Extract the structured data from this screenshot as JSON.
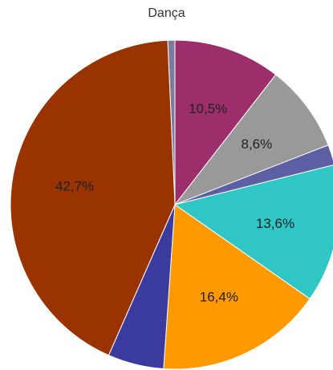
{
  "chart_data": {
    "type": "pie",
    "title": "Dança",
    "slices": [
      {
        "value": 0.7,
        "label": "",
        "color": "#7b7b9c"
      },
      {
        "value": 10.5,
        "label": "10,5%",
        "color": "#9c2f6b"
      },
      {
        "value": 8.6,
        "label": "8,6%",
        "color": "#999999"
      },
      {
        "value": 2.0,
        "label": "",
        "color": "#5d5ea4"
      },
      {
        "value": 13.6,
        "label": "13,6%",
        "color": "#31c6c6"
      },
      {
        "value": 16.4,
        "label": "16,4%",
        "color": "#ff9900"
      },
      {
        "value": 5.5,
        "label": "",
        "color": "#3a3a9f"
      },
      {
        "value": 42.7,
        "label": "42,7%",
        "color": "#993300"
      }
    ]
  }
}
